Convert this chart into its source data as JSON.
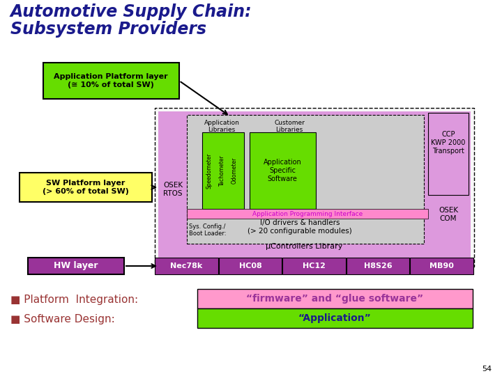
{
  "title_line1": "Automotive Supply Chain:",
  "title_line2": "Subsystem Providers",
  "title_color": "#1a1a8c",
  "bg_color": "#ffffff",
  "app_platform_label": "Application Platform layer\n(≅ 10% of total SW)",
  "sw_platform_label": "SW Platform layer\n(> 60% of total SW)",
  "hw_layer_label": "HW layer",
  "label_box_green": "#66dd00",
  "label_box_yellow": "#ffff66",
  "label_box_purple": "#993399",
  "main_box_bg": "#dd99dd",
  "inner_box_bg": "#cccccc",
  "api_bar_color": "#ff88cc",
  "app_lib_box_color": "#66dd00",
  "customer_lib_box_color": "#66dd00",
  "hw_chips": [
    "Nec78k",
    "HC08",
    "HC12",
    "H8S26",
    "MB90"
  ],
  "hw_chip_color": "#993399",
  "firmware_box_color": "#ff99cc",
  "firmware_text": "“firmware” and “glue software”",
  "firmware_text_color": "#993399",
  "application_box_color": "#66dd00",
  "application_text": "“Application”",
  "application_text_color": "#1a1a8c",
  "platform_integration_text": "■ Platform  Integration:",
  "software_design_text": "■ Software Design:",
  "bullet_text_color": "#993333",
  "page_number": "54"
}
